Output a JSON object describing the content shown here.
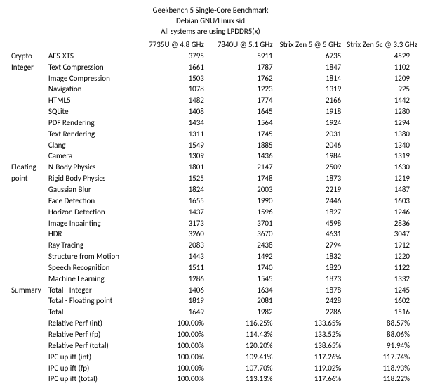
{
  "title_lines": [
    "Geekbench 5 Single-Core Benchmark",
    "Debian GNU/Linux sid",
    "All systems are using LPDDR5(x)"
  ],
  "columns": [
    "7735U @ 4.8 GHz",
    "7840U @ 5.1 GHz",
    "Strix Zen 5 @ 5 GHz",
    "Strix Zen 5c @ 3.3 GHz"
  ],
  "rows": [
    {
      "cat": "Crypto",
      "test": "AES-XTS",
      "v": [
        "3795",
        "5911",
        "6735",
        "4529"
      ]
    },
    {
      "cat": "Integer",
      "test": "Text Compression",
      "v": [
        "1661",
        "1787",
        "1847",
        "1102"
      ]
    },
    {
      "cat": "",
      "test": "Image Compression",
      "v": [
        "1503",
        "1762",
        "1814",
        "1209"
      ]
    },
    {
      "cat": "",
      "test": "Navigation",
      "v": [
        "1078",
        "1223",
        "1319",
        "925"
      ]
    },
    {
      "cat": "",
      "test": "HTML5",
      "v": [
        "1482",
        "1774",
        "2166",
        "1442"
      ]
    },
    {
      "cat": "",
      "test": "SQLite",
      "v": [
        "1408",
        "1645",
        "1918",
        "1280"
      ]
    },
    {
      "cat": "",
      "test": "PDF Rendering",
      "v": [
        "1434",
        "1564",
        "1924",
        "1294"
      ]
    },
    {
      "cat": "",
      "test": "Text Rendering",
      "v": [
        "1311",
        "1745",
        "2031",
        "1380"
      ]
    },
    {
      "cat": "",
      "test": "Clang",
      "v": [
        "1549",
        "1885",
        "2046",
        "1340"
      ]
    },
    {
      "cat": "",
      "test": "Camera",
      "v": [
        "1309",
        "1436",
        "1984",
        "1319"
      ]
    },
    {
      "cat": "Floating",
      "test": "N-Body Physics",
      "v": [
        "1801",
        "2147",
        "2509",
        "1630"
      ]
    },
    {
      "cat": "point",
      "test": "Rigid Body Physics",
      "v": [
        "1525",
        "1748",
        "1873",
        "1219"
      ]
    },
    {
      "cat": "",
      "test": "Gaussian Blur",
      "v": [
        "1824",
        "2003",
        "2219",
        "1487"
      ]
    },
    {
      "cat": "",
      "test": "Face Detection",
      "v": [
        "1655",
        "1990",
        "2446",
        "1603"
      ]
    },
    {
      "cat": "",
      "test": "Horizon Detection",
      "v": [
        "1437",
        "1596",
        "1827",
        "1246"
      ]
    },
    {
      "cat": "",
      "test": "Image Inpainting",
      "v": [
        "3173",
        "3701",
        "4598",
        "2836"
      ]
    },
    {
      "cat": "",
      "test": "HDR",
      "v": [
        "3260",
        "3670",
        "4631",
        "3047"
      ]
    },
    {
      "cat": "",
      "test": "Ray Tracing",
      "v": [
        "2083",
        "2438",
        "2794",
        "1912"
      ]
    },
    {
      "cat": "",
      "test": "Structure from Motion",
      "v": [
        "1443",
        "1492",
        "1832",
        "1220"
      ]
    },
    {
      "cat": "",
      "test": "Speech Recognition",
      "v": [
        "1511",
        "1740",
        "1820",
        "1122"
      ]
    },
    {
      "cat": "",
      "test": "Machine Learning",
      "v": [
        "1286",
        "1545",
        "1873",
        "1332"
      ]
    },
    {
      "cat": "Summary",
      "test": "Total - Integer",
      "v": [
        "1406",
        "1634",
        "1878",
        "1245"
      ]
    },
    {
      "cat": "",
      "test": "Total - Floating point",
      "v": [
        "1819",
        "2081",
        "2428",
        "1602"
      ]
    },
    {
      "cat": "",
      "test": "Total",
      "v": [
        "1649",
        "1982",
        "2286",
        "1516"
      ]
    },
    {
      "cat": "",
      "test": "Relative Perf (int)",
      "v": [
        "100.00%",
        "116.25%",
        "133.65%",
        "88.57%"
      ]
    },
    {
      "cat": "",
      "test": "Relative Perf (fp)",
      "v": [
        "100.00%",
        "114.43%",
        "133.52%",
        "88.06%"
      ]
    },
    {
      "cat": "",
      "test": "Relative Perf (total)",
      "v": [
        "100.00%",
        "120.20%",
        "138.65%",
        "91.94%"
      ]
    },
    {
      "cat": "",
      "test": "IPC uplift (int)",
      "v": [
        "100.00%",
        "109.41%",
        "117.26%",
        "117.74%"
      ]
    },
    {
      "cat": "",
      "test": "IPC uplift (fp)",
      "v": [
        "100.00%",
        "107.70%",
        "119.02%",
        "118.93%"
      ]
    },
    {
      "cat": "",
      "test": "IPC uplift (total)",
      "v": [
        "100.00%",
        "113.13%",
        "117.66%",
        "118.22%"
      ]
    }
  ]
}
